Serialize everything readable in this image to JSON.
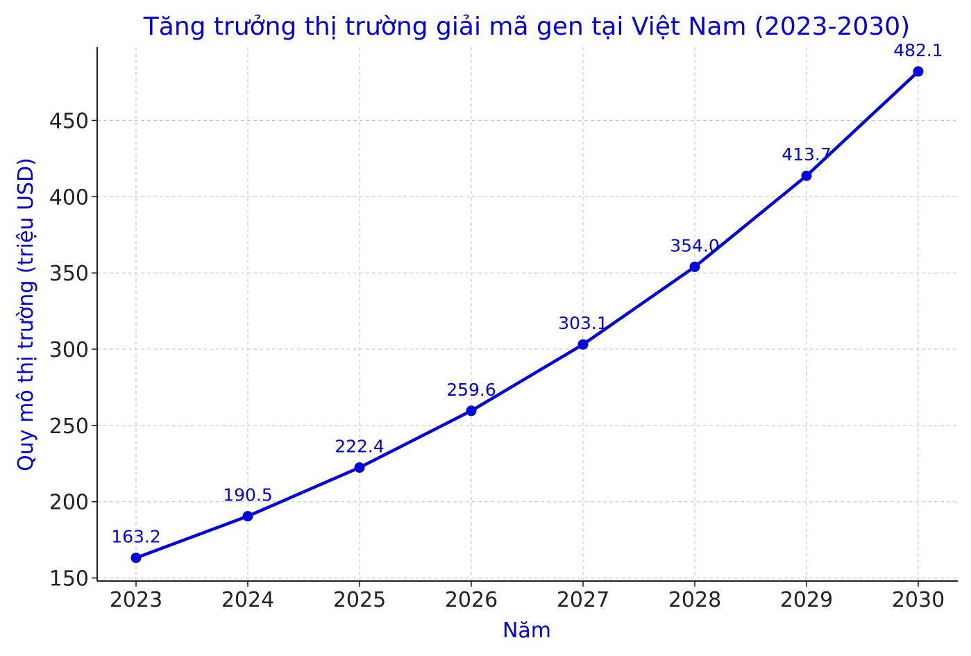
{
  "chart_data": {
    "type": "line",
    "title": "Tăng trưởng thị trường giải mã gen tại Việt Nam (2023-2030)",
    "xlabel": "Năm",
    "ylabel": "Quy mô thị trường (triệu USD)",
    "categories": [
      "2023",
      "2024",
      "2025",
      "2026",
      "2027",
      "2028",
      "2029",
      "2030"
    ],
    "series": [
      {
        "values": [
          163.2,
          190.5,
          222.4,
          259.6,
          303.1,
          354.0,
          413.7,
          482.1
        ],
        "labels": [
          "163.2",
          "190.5",
          "222.4",
          "259.6",
          "303.1",
          "354.0",
          "413.7",
          "482.1"
        ],
        "color": "#0000dd",
        "marker": "circle"
      }
    ],
    "yticks": [
      150,
      200,
      250,
      300,
      350,
      400,
      450
    ],
    "ylim": [
      148,
      498
    ],
    "grid": true,
    "legend": "none"
  }
}
